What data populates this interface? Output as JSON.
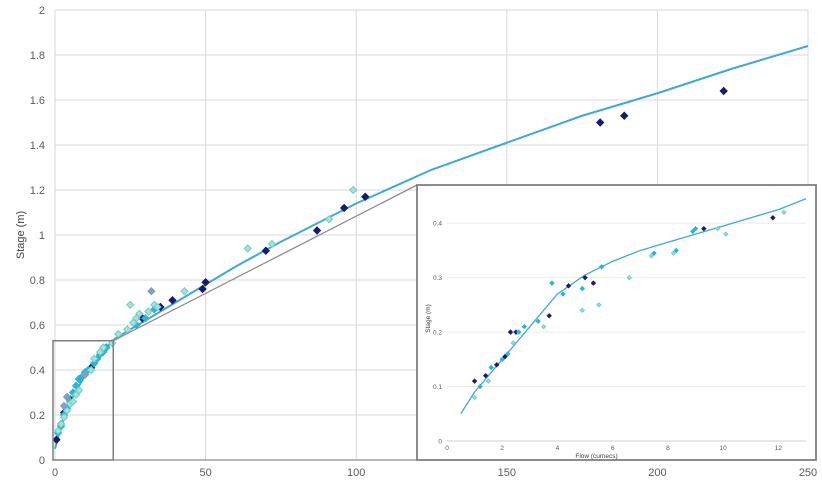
{
  "chart_data": {
    "type": "scatter",
    "title": "",
    "xlabel": "",
    "ylabel": "Stage (m)",
    "xlim": [
      0,
      250
    ],
    "ylim": [
      0,
      2
    ],
    "x_ticks": [
      "0",
      "50",
      "100",
      "150",
      "200",
      "250"
    ],
    "y_ticks": [
      "0",
      "0.2",
      "0.4",
      "0.6",
      "0.8",
      "1",
      "1.2",
      "1.4",
      "1.6",
      "1.8",
      "2"
    ],
    "grid": true,
    "legend": "none",
    "colors": {
      "curve": "#3fa9d6",
      "dark": "#1a1a6e",
      "mid": "#2bb5d4",
      "light": "#a8e0dc",
      "light_edge": "#6ccfc4",
      "steel": "#7f9fc8"
    },
    "curve": {
      "x": [
        0,
        1,
        2,
        4,
        8,
        12,
        17,
        20,
        25,
        30,
        40,
        50,
        60,
        75,
        100,
        125,
        150,
        175,
        200,
        225,
        250
      ],
      "y": [
        0.05,
        0.1,
        0.15,
        0.23,
        0.33,
        0.42,
        0.5,
        0.54,
        0.58,
        0.62,
        0.7,
        0.78,
        0.86,
        0.97,
        1.14,
        1.29,
        1.41,
        1.53,
        1.63,
        1.74,
        1.84
      ]
    },
    "series": [
      {
        "style": "dark",
        "x": [
          0.5,
          2,
          3,
          5,
          8,
          12,
          17,
          29,
          35,
          39,
          49,
          50,
          70,
          87,
          96,
          103,
          181,
          189,
          222
        ],
        "y": [
          0.09,
          0.16,
          0.21,
          0.27,
          0.36,
          0.41,
          0.5,
          0.63,
          0.68,
          0.71,
          0.76,
          0.79,
          0.93,
          1.02,
          1.12,
          1.17,
          1.5,
          1.53,
          1.64
        ]
      },
      {
        "style": "mid",
        "x": [
          1,
          2,
          3,
          4,
          5,
          6,
          7,
          8,
          9,
          10,
          11,
          13,
          14,
          15,
          16,
          17,
          27,
          30,
          33
        ],
        "y": [
          0.12,
          0.15,
          0.2,
          0.23,
          0.26,
          0.3,
          0.33,
          0.36,
          0.37,
          0.39,
          0.4,
          0.43,
          0.45,
          0.47,
          0.48,
          0.5,
          0.6,
          0.63,
          0.67
        ]
      },
      {
        "style": "light",
        "x": [
          1,
          2,
          3,
          4,
          5,
          6,
          7,
          8,
          10,
          12,
          13,
          15,
          16,
          19,
          21,
          24,
          25,
          26,
          27,
          28,
          31,
          33,
          34,
          43,
          64,
          72,
          91,
          99
        ],
        "y": [
          0.13,
          0.16,
          0.19,
          0.22,
          0.25,
          0.26,
          0.29,
          0.31,
          0.38,
          0.4,
          0.45,
          0.48,
          0.5,
          0.52,
          0.56,
          0.58,
          0.69,
          0.61,
          0.63,
          0.65,
          0.66,
          0.69,
          0.68,
          0.75,
          0.94,
          0.96,
          1.07,
          1.2
        ]
      },
      {
        "style": "steel",
        "x": [
          3,
          4,
          10,
          32
        ],
        "y": [
          0.24,
          0.28,
          0.38,
          0.75
        ]
      }
    ],
    "inset": {
      "xlabel": "Flow (cumecs)",
      "ylabel": "Stage (m)",
      "xlim": [
        0,
        13
      ],
      "ylim": [
        0,
        0.45
      ],
      "x_ticks": [
        "0",
        "2",
        "4",
        "6",
        "8",
        "10",
        "12"
      ],
      "y_ticks": [
        "0",
        "0.1",
        "0.2",
        "0.3",
        "0.4"
      ],
      "zoom_region": {
        "xlim": [
          0,
          20
        ],
        "ylim": [
          0,
          0.53
        ]
      },
      "curve": {
        "x": [
          0.5,
          1,
          1.5,
          2,
          2.5,
          3,
          3.5,
          4,
          5,
          6,
          7,
          8,
          9,
          10,
          11,
          12,
          13
        ],
        "y": [
          0.05,
          0.09,
          0.12,
          0.15,
          0.18,
          0.21,
          0.24,
          0.27,
          0.305,
          0.33,
          0.35,
          0.365,
          0.38,
          0.395,
          0.41,
          0.425,
          0.445
        ]
      },
      "series": [
        {
          "style": "dark",
          "x": [
            1,
            1.4,
            1.8,
            2.1,
            2.3,
            2.5,
            3.7,
            4.4,
            5.0,
            5.3,
            9.3,
            11.8
          ],
          "y": [
            0.11,
            0.12,
            0.14,
            0.155,
            0.2,
            0.2,
            0.23,
            0.285,
            0.3,
            0.29,
            0.39,
            0.41
          ]
        },
        {
          "style": "mid",
          "x": [
            1.2,
            1.6,
            2.0,
            2.2,
            2.6,
            2.8,
            3.3,
            3.8,
            4.2,
            4.9,
            5.6,
            7.5,
            8.3,
            8.9,
            9.0
          ],
          "y": [
            0.1,
            0.135,
            0.15,
            0.16,
            0.2,
            0.21,
            0.22,
            0.29,
            0.27,
            0.28,
            0.32,
            0.345,
            0.35,
            0.385,
            0.39
          ]
        },
        {
          "style": "light",
          "x": [
            1,
            1.5,
            2.4,
            3.5,
            4.9,
            5.5,
            6.6,
            7.4,
            8.2,
            9.8,
            10.1,
            12.2
          ],
          "y": [
            0.08,
            0.11,
            0.18,
            0.21,
            0.24,
            0.25,
            0.3,
            0.34,
            0.345,
            0.39,
            0.38,
            0.42
          ]
        }
      ]
    }
  }
}
